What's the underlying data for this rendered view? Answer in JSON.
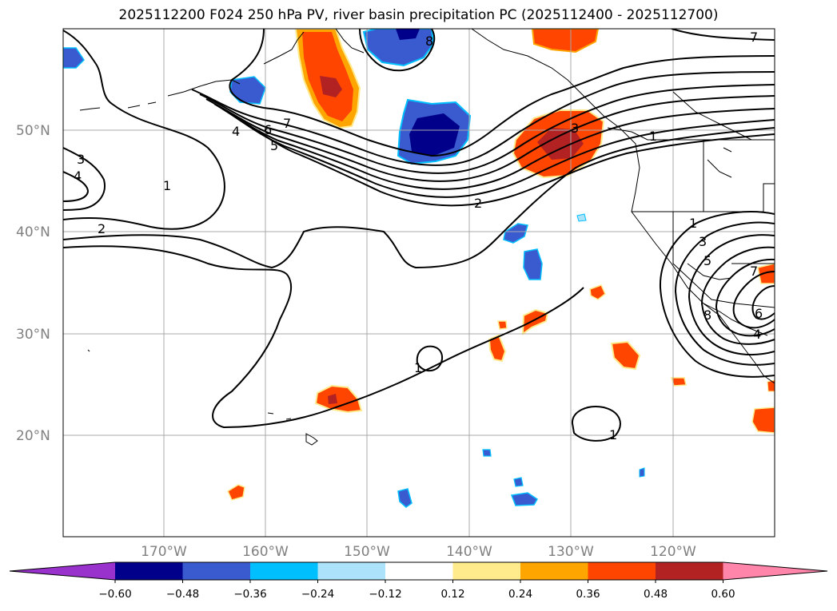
{
  "title": "2025112200 F024 250 hPa PV, river basin precipitation PC (2025112400 - 2025112700)",
  "colors": {
    "neg_060": "#9932CC",
    "neg_048": "#00008B",
    "neg_036": "#3A5BCF",
    "neg_024": "#00BFFF",
    "neg_012": "#ADE3FA",
    "neutral": "#FFFFFF",
    "pos_012": "#FFEA8C",
    "pos_024": "#FFA500",
    "pos_036": "#FF4500",
    "pos_048": "#B22222",
    "pos_060": "#FF85AA",
    "contour": "#000000",
    "grid": "#A0A0A0",
    "coast": "#000000"
  },
  "map": {
    "lon_range": [
      -180,
      -110
    ],
    "lat_range": [
      10,
      60
    ],
    "lat_ticks": [
      "20°N",
      "30°N",
      "40°N",
      "50°N"
    ],
    "lon_ticks": [
      "170°W",
      "160°W",
      "150°W",
      "140°W",
      "130°W",
      "120°W"
    ]
  },
  "colorbar": {
    "levels": [
      "−0.60",
      "−0.48",
      "−0.36",
      "−0.24",
      "−0.12",
      "0.12",
      "0.24",
      "0.36",
      "0.48",
      "0.60"
    ]
  },
  "contour_labels": {
    "l1": "4",
    "l2": "3",
    "l3": "1",
    "l4": "2",
    "l5": "4",
    "l6": "6",
    "l7": "5",
    "l8": "7",
    "l9": "8",
    "l10": "7",
    "l11": "3",
    "l12": "1",
    "l13": "2",
    "l14": "1",
    "l15": "3",
    "l16": "5",
    "l17": "7",
    "l18": "6",
    "l19": "4",
    "l20": "8",
    "l21": "1",
    "l22": "1"
  }
}
